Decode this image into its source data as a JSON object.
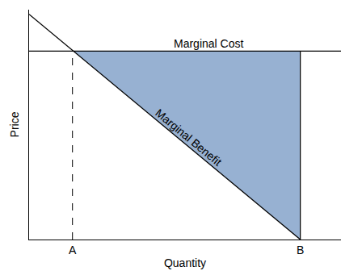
{
  "chart_data": {
    "type": "line",
    "x_label": "Quantity",
    "y_label": "Price",
    "xlim": [
      0,
      115
    ],
    "ylim": [
      0,
      100
    ],
    "xticks": [
      {
        "value": 16,
        "label": "A"
      },
      {
        "value": 100,
        "label": "B"
      }
    ],
    "yticks": [],
    "tick_labels": "x",
    "grid": false,
    "series": [
      {
        "name": "Marginal Cost",
        "color": "#000000",
        "x": [
          0,
          115
        ],
        "values": [
          82,
          82
        ]
      },
      {
        "name": "Marginal Benefit",
        "color": "#000000",
        "x": [
          0,
          100
        ],
        "values": [
          98,
          0
        ]
      }
    ],
    "shaded_area": {
      "between": [
        "Marginal Cost",
        "Marginal Benefit"
      ],
      "x": [
        16,
        100
      ],
      "color": "#97b1d2"
    }
  }
}
